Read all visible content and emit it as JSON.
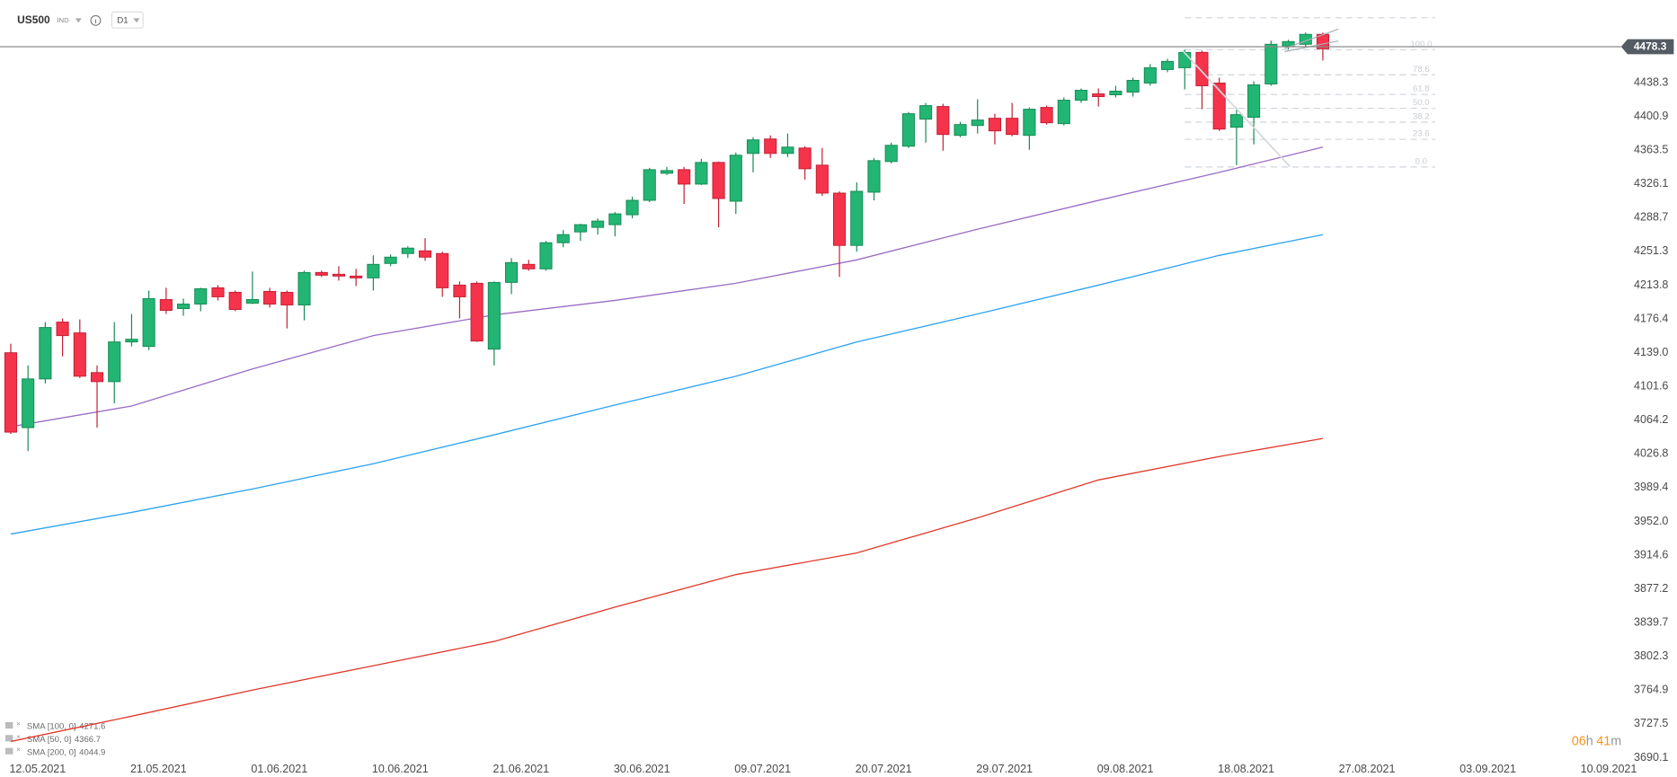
{
  "header": {
    "symbol": "US500",
    "exchange": "IND",
    "timeframe": "D1"
  },
  "countdown": {
    "hours": "06",
    "hours_unit": "h",
    "minutes": "41",
    "minutes_unit": "m"
  },
  "chart_data": {
    "type": "candlestick",
    "up_color": "#22b573",
    "down_color": "#f5334b",
    "ylim": [
      3689,
      4530
    ],
    "yticks": [
      4438.3,
      4400.9,
      4363.5,
      4326.1,
      4288.7,
      4251.3,
      4213.8,
      4176.4,
      {
        "value": 4139.0,
        "label": "4139.0"
      },
      4101.6,
      4064.2,
      4026.8,
      3989.4,
      {
        "value": 3952.0,
        "label": "3952.0"
      },
      3914.6,
      3877.2,
      3839.7,
      3802.3,
      3764.9,
      3727.5,
      3690.1
    ],
    "grid": false,
    "last_price": 4478.3,
    "categories": [
      "12.05.2021",
      null,
      null,
      null,
      null,
      null,
      null,
      "21.05.2021",
      null,
      null,
      null,
      null,
      null,
      null,
      "01.06.2021",
      null,
      null,
      null,
      null,
      null,
      null,
      "10.06.2021",
      null,
      null,
      null,
      null,
      null,
      null,
      "21.06.2021",
      null,
      null,
      null,
      null,
      null,
      null,
      "30.06.2021",
      null,
      null,
      null,
      null,
      null,
      null,
      "09.07.2021",
      null,
      null,
      null,
      null,
      null,
      null,
      "20.07.2021",
      null,
      null,
      null,
      null,
      null,
      null,
      "29.07.2021",
      null,
      null,
      null,
      null,
      null,
      null,
      "09.08.2021",
      null,
      null,
      null,
      null,
      null,
      null,
      "18.08.2021",
      null,
      null,
      null,
      null,
      null,
      null,
      "27.08.2021",
      null,
      null,
      null,
      null,
      null,
      null,
      "03.09.2021",
      null,
      null,
      null,
      null,
      null,
      null,
      "10.09.2021"
    ],
    "open": [
      4139,
      4056,
      4110,
      4173,
      4161,
      4117,
      4107,
      4151,
      4146,
      4198,
      4188,
      4193,
      4211,
      4206,
      4194,
      4207,
      4206,
      4192,
      4228,
      4226,
      4224,
      4222,
      4238,
      4249,
      4252,
      4249,
      4214,
      4216,
      4143,
      4217,
      4237,
      4232,
      4261,
      4273,
      4278,
      4281,
      4292,
      4308,
      4338,
      4342,
      4326,
      4350,
      4307,
      4360,
      4376,
      4360,
      4366,
      4347,
      4316,
      4258,
      4317,
      4351,
      4368,
      4398,
      4412,
      4380,
      4391,
      4399,
      4399,
      4380,
      4411,
      4393,
      4419,
      4426,
      4425,
      4428,
      4438,
      4453,
      4455,
      4472,
      4438,
      4389,
      4400,
      4437,
      4479,
      4481,
      4492,
      null,
      null,
      null,
      null,
      null,
      null,
      null,
      null,
      null,
      null,
      null,
      null,
      null,
      null,
      null
    ],
    "high": [
      4149,
      4125,
      4173,
      4177,
      4176,
      4125,
      4173,
      4182,
      4208,
      4211,
      4199,
      4211,
      4214,
      4208,
      4229,
      4211,
      4208,
      4230,
      4230,
      4235,
      4232,
      4247,
      4248,
      4257,
      4266,
      4251,
      4218,
      4218,
      4218,
      4244,
      4242,
      4263,
      4275,
      4282,
      4288,
      4295,
      4312,
      4344,
      4345,
      4345,
      4354,
      4351,
      4361,
      4378,
      4380,
      4382,
      4368,
      4366,
      4318,
      4328,
      4355,
      4372,
      4406,
      4416,
      4415,
      4395,
      4420,
      4404,
      4416,
      4411,
      4413,
      4422,
      4432,
      4432,
      4435,
      4444,
      4459,
      4465,
      4475,
      4474,
      4444,
      4411,
      4440,
      4485,
      4486,
      4494,
      4494,
      null,
      null,
      null,
      null,
      null,
      null,
      null,
      null,
      null,
      null,
      null,
      null,
      null,
      null,
      null
    ],
    "low": [
      4049,
      4030,
      4105,
      4135,
      4111,
      4056,
      4083,
      4146,
      4142,
      4182,
      4180,
      4185,
      4197,
      4185,
      4193,
      4189,
      4166,
      4175,
      4223,
      4219,
      4213,
      4208,
      4235,
      4244,
      4241,
      4201,
      4177,
      4151,
      4125,
      4204,
      4230,
      4230,
      4256,
      4263,
      4270,
      4268,
      4288,
      4306,
      4336,
      4304,
      4325,
      4278,
      4293,
      4339,
      4355,
      4356,
      4331,
      4313,
      4223,
      4251,
      4308,
      4349,
      4366,
      4372,
      4363,
      4378,
      4382,
      4370,
      4379,
      4364,
      4392,
      4391,
      4416,
      4412,
      4422,
      4423,
      4435,
      4450,
      4431,
      4409,
      4385,
      4347,
      4370,
      4435,
      4475,
      4478,
      4463,
      null,
      null,
      null,
      null,
      null,
      null,
      null,
      null,
      null,
      null,
      null,
      null,
      null,
      null,
      null
    ],
    "close": [
      4051,
      4110,
      4167,
      4158,
      4113,
      4107,
      4151,
      4154,
      4199,
      4186,
      4193,
      4210,
      4201,
      4187,
      4198,
      4193,
      4192,
      4228,
      4225,
      4224,
      4222,
      4237,
      4245,
      4255,
      4245,
      4211,
      4201,
      4152,
      4217,
      4239,
      4232,
      4261,
      4270,
      4281,
      4285,
      4293,
      4308,
      4342,
      4341,
      4326,
      4350,
      4310,
      4358,
      4375,
      4360,
      4367,
      4343,
      4316,
      4258,
      4318,
      4352,
      4369,
      4404,
      4413,
      4381,
      4392,
      4397,
      4385,
      4381,
      4409,
      4394,
      4419,
      4430,
      4423,
      4429,
      4441,
      4455,
      4462,
      4472,
      4435,
      4387,
      4403,
      4436,
      4481,
      4484,
      4492,
      4476,
      null,
      null,
      null,
      null,
      null,
      null,
      null,
      null,
      null,
      null,
      null,
      null,
      null,
      null,
      null
    ],
    "series": [
      {
        "name": "SMA [100, 0]",
        "last": 4271.6,
        "color": "#2ea3f2",
        "x": [
          0,
          7,
          14,
          21,
          28,
          35,
          42,
          49,
          56,
          63,
          70,
          76
        ],
        "values": [
          3938,
          3962,
          3988,
          4016,
          4048,
          4081,
          4113,
          4151,
          4182,
          4214,
          4247,
          4270
        ]
      },
      {
        "name": "SMA [50, 0]",
        "last": 4366.7,
        "color": "#9a6cc6",
        "x": [
          0,
          7,
          14,
          21,
          28,
          35,
          42,
          49,
          56,
          63,
          70,
          76
        ],
        "values": [
          4057,
          4080,
          4121,
          4158,
          4181,
          4197,
          4216,
          4242,
          4276,
          4308,
          4339,
          4367
        ]
      },
      {
        "name": "SMA [200, 0]",
        "last": 4044.9,
        "color": "#e0392b",
        "x": [
          0,
          7,
          14,
          21,
          28,
          35,
          42,
          49,
          56,
          63,
          70,
          76
        ],
        "values": [
          3708,
          3736,
          3765,
          3792,
          3819,
          3857,
          3893,
          3917,
          3956,
          3998,
          4024,
          4044
        ]
      }
    ],
    "fibonacci": {
      "anchors": [
        4345,
        4475
      ],
      "levels": [
        {
          "value": 127.2
        },
        {
          "value": 100,
          "label": "100.0"
        },
        {
          "value": 78.6,
          "label": "78.6"
        },
        {
          "value": 61.8,
          "label": "61.8"
        },
        {
          "value": 50,
          "label": "50.0"
        },
        {
          "value": 38.2,
          "label": "38.2"
        },
        {
          "value": 23.6,
          "label": "23.6"
        },
        {
          "value": 0,
          "label": "0.0"
        }
      ]
    }
  }
}
